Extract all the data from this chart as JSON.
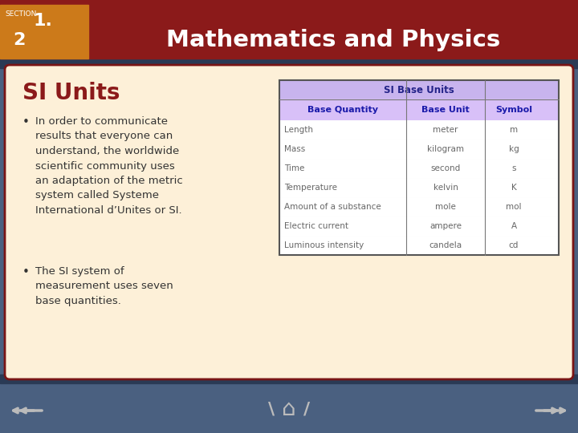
{
  "title": "Mathematics and Physics",
  "section_label": "SECTION",
  "section_num": "1.",
  "section_sub": "2",
  "slide_title": "SI Units",
  "bullet1": "In order to communicate\nresults that everyone can\nunderstand, the worldwide\nscientific community uses\nan adaptation of the metric\nsystem called Systeme\nInternational d’Unites or SI.",
  "bullet2": "The SI system of\nmeasurement uses seven\nbase quantities.",
  "table_title": "SI Base Units",
  "table_headers": [
    "Base Quantity",
    "Base Unit",
    "Symbol"
  ],
  "table_rows": [
    [
      "Length",
      "meter",
      "m"
    ],
    [
      "Mass",
      "kilogram",
      "kg"
    ],
    [
      "Time",
      "second",
      "s"
    ],
    [
      "Temperature",
      "kelvin",
      "K"
    ],
    [
      "Amount of a substance",
      "mole",
      "mol"
    ],
    [
      "Electric current",
      "ampere",
      "A"
    ],
    [
      "Luminous intensity",
      "candela",
      "cd"
    ]
  ],
  "bg_outer": "#4a6080",
  "bg_header": "#8b1a1a",
  "bg_orange": "#cc7a1a",
  "bg_content": "#fdf0d8",
  "bg_table_title": "#c8b4ee",
  "bg_table_header": "#d8c0f8",
  "color_slide_title": "#8b1a1a",
  "color_header_text": "#ffffff",
  "color_section": "#ffffff",
  "color_body": "#333333",
  "color_table_header_text": "#1a1aaa",
  "color_table_body": "#666666",
  "color_table_title_text": "#222288",
  "bottom_bar_color": "#4a6080",
  "nav_arrow_color": "#bbbbbb",
  "dark_stripe_color": "#2a3a55"
}
